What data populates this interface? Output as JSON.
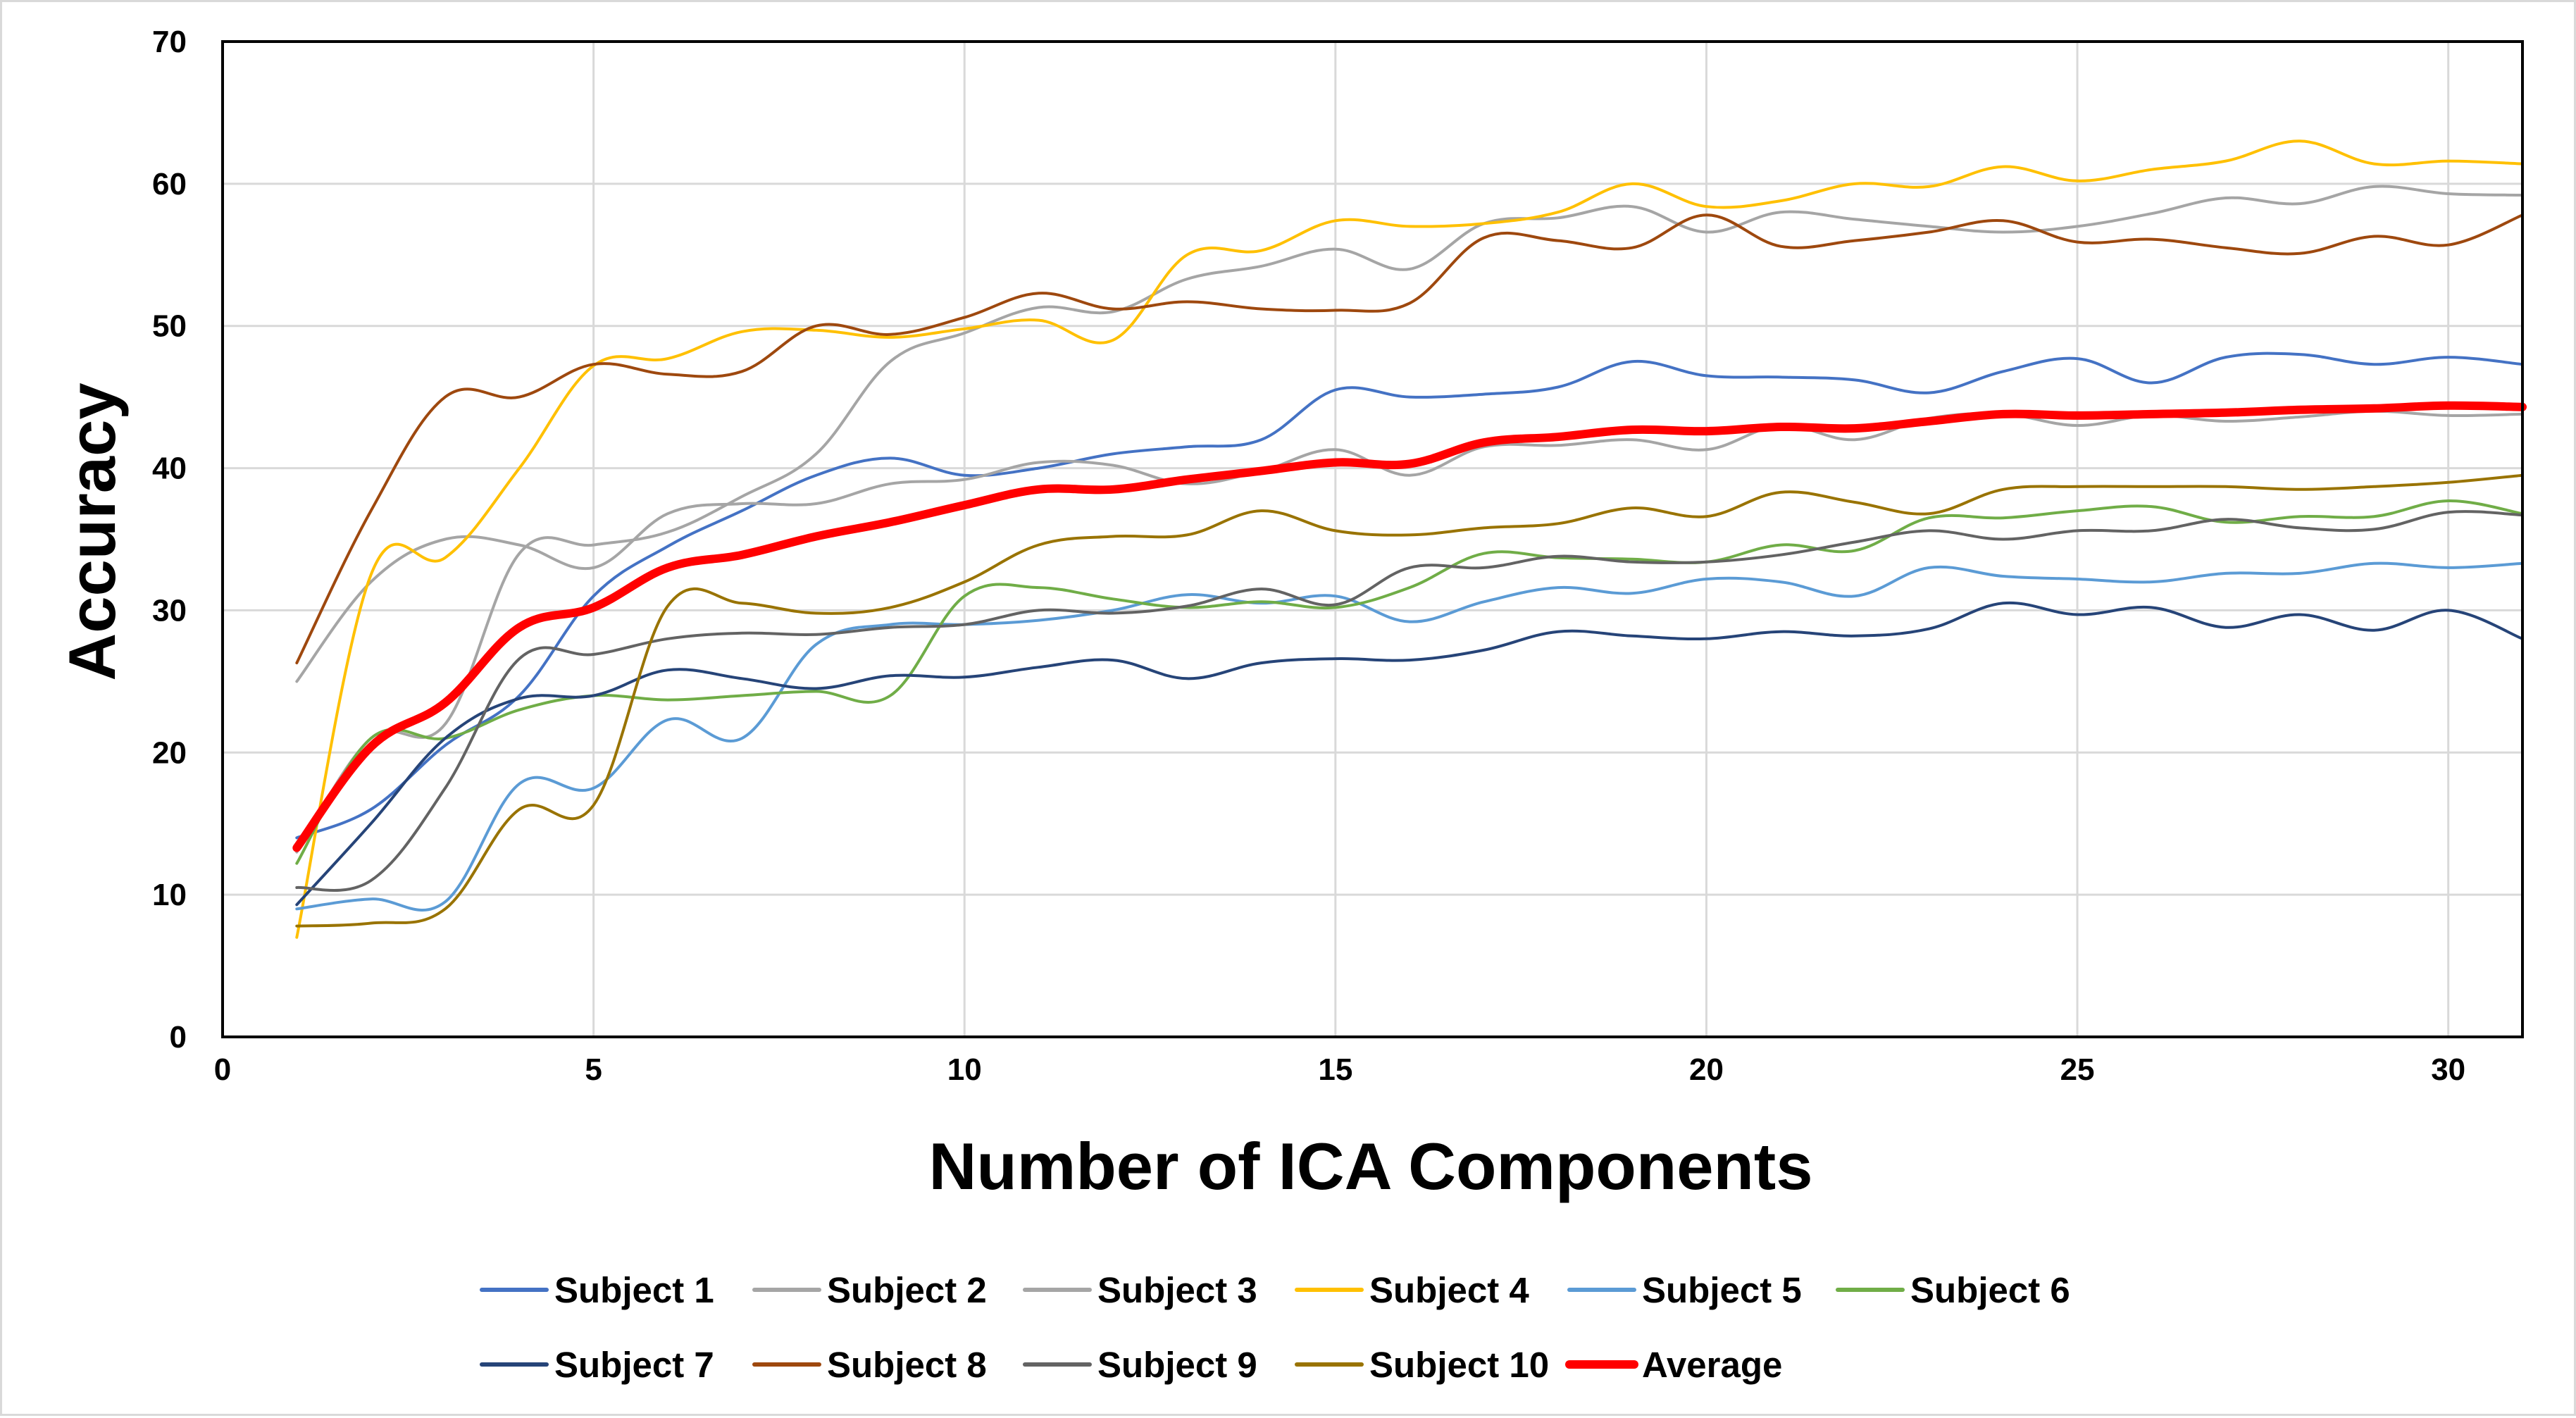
{
  "chart_data": {
    "type": "line",
    "title": "",
    "xlabel": "Number of ICA Components",
    "ylabel": "Accuracy",
    "xlim": [
      0,
      31
    ],
    "ylim": [
      0,
      70
    ],
    "x_ticks": [
      0,
      5,
      10,
      15,
      20,
      25,
      30
    ],
    "y_ticks": [
      0,
      10,
      20,
      30,
      40,
      50,
      60,
      70
    ],
    "grid": true,
    "legend_position": "bottom",
    "x": [
      1,
      2,
      3,
      4,
      5,
      6,
      7,
      8,
      9,
      10,
      11,
      12,
      13,
      14,
      15,
      16,
      17,
      18,
      19,
      20,
      21,
      22,
      23,
      24,
      25,
      26,
      27,
      28,
      29,
      30,
      31
    ],
    "series": [
      {
        "name": "Subject 1",
        "color": "#4472c4",
        "width": 4,
        "values": [
          14,
          16,
          20.5,
          24,
          31,
          34.5,
          37,
          39.5,
          40.7,
          39.5,
          40,
          41,
          41.5,
          42,
          45.5,
          45,
          45.2,
          45.7,
          47.5,
          46.5,
          46.4,
          46.2,
          45.3,
          46.8,
          47.7,
          46,
          47.8,
          48,
          47.3,
          47.8,
          47.3
        ]
      },
      {
        "name": "Subject 2",
        "color": "#a5a5a5",
        "width": 4,
        "values": [
          25,
          32,
          35,
          34.6,
          33,
          36.8,
          37.5,
          37.5,
          38.9,
          39.2,
          40.4,
          40.2,
          38.9,
          39.8,
          41.3,
          39.5,
          41.5,
          41.6,
          42,
          41.3,
          43,
          42,
          43.5,
          43.8,
          43,
          43.7,
          43.3,
          43.6,
          44,
          43.7,
          43.8
        ]
      },
      {
        "name": "Subject 3",
        "color": "#a5a5a5",
        "width": 4,
        "values": [
          13,
          21,
          22,
          34,
          34.6,
          35.5,
          38,
          41,
          47.5,
          49.5,
          51.3,
          51,
          53.3,
          54.2,
          55.4,
          54,
          57.2,
          57.6,
          58.4,
          56.6,
          58,
          57.5,
          57,
          56.6,
          57,
          57.9,
          59,
          58.6,
          59.8,
          59.3,
          59.2
        ]
      },
      {
        "name": "Subject 4",
        "color": "#ffc000",
        "width": 4,
        "values": [
          7,
          32.5,
          33.7,
          40,
          47.2,
          47.7,
          49.6,
          49.7,
          49.2,
          49.8,
          50.4,
          49,
          55,
          55.3,
          57.4,
          57,
          57.2,
          58,
          60,
          58.4,
          58.8,
          60,
          59.8,
          61.2,
          60.2,
          61,
          61.6,
          63,
          61.4,
          61.6,
          61.4
        ]
      },
      {
        "name": "Subject 5",
        "color": "#5b9bd5",
        "width": 4,
        "values": [
          9,
          9.7,
          9.5,
          17.8,
          17.5,
          22.3,
          21,
          27.6,
          29,
          29,
          29.3,
          30,
          31.1,
          30.5,
          31,
          29.2,
          30.6,
          31.6,
          31.2,
          32.2,
          32,
          31,
          33,
          32.4,
          32.2,
          32,
          32.6,
          32.6,
          33.3,
          33,
          33.3
        ]
      },
      {
        "name": "Subject 6",
        "color": "#70ad47",
        "width": 4,
        "values": [
          12.2,
          21,
          21,
          23,
          24,
          23.7,
          24,
          24.3,
          24,
          31,
          31.6,
          30.8,
          30.2,
          30.6,
          30.2,
          31.6,
          34,
          33.7,
          33.6,
          33.4,
          34.6,
          34.2,
          36.5,
          36.5,
          37,
          37.3,
          36.2,
          36.6,
          36.6,
          37.7,
          36.8
        ]
      },
      {
        "name": "Subject 7",
        "color": "#264478",
        "width": 4,
        "values": [
          9.3,
          15,
          21,
          23.8,
          24,
          25.8,
          25.2,
          24.5,
          25.4,
          25.3,
          26,
          26.5,
          25.2,
          26.3,
          26.6,
          26.5,
          27.2,
          28.5,
          28.2,
          28,
          28.5,
          28.2,
          28.7,
          30.5,
          29.7,
          30.2,
          28.8,
          29.7,
          28.6,
          30,
          28
        ]
      },
      {
        "name": "Subject 8",
        "color": "#9e480e",
        "width": 4,
        "values": [
          26.3,
          37,
          45,
          45,
          47.3,
          46.6,
          46.8,
          50,
          49.4,
          50.6,
          52.3,
          51.2,
          51.7,
          51.2,
          51.1,
          51.6,
          56.2,
          56,
          55.5,
          57.8,
          55.6,
          56,
          56.6,
          57.4,
          55.9,
          56.1,
          55.5,
          55.1,
          56.3,
          55.7,
          57.8
        ]
      },
      {
        "name": "Subject 9",
        "color": "#636363",
        "width": 4,
        "values": [
          10.5,
          11,
          17.5,
          26.6,
          26.9,
          28,
          28.4,
          28.3,
          28.8,
          29,
          30,
          29.8,
          30.3,
          31.5,
          30.4,
          33,
          33,
          33.8,
          33.4,
          33.4,
          33.9,
          34.8,
          35.6,
          35,
          35.6,
          35.6,
          36.4,
          35.8,
          35.7,
          36.9,
          36.7
        ]
      },
      {
        "name": "Subject 10",
        "color": "#997300",
        "width": 4,
        "values": [
          7.8,
          8,
          9,
          16,
          16.3,
          30.3,
          30.5,
          29.8,
          30.2,
          32,
          34.6,
          35.2,
          35.3,
          37,
          35.6,
          35.3,
          35.8,
          36.1,
          37.2,
          36.6,
          38.3,
          37.6,
          36.8,
          38.5,
          38.7,
          38.7,
          38.7,
          38.5,
          38.7,
          39,
          39.5
        ]
      },
      {
        "name": "Average",
        "color": "#ff0000",
        "width": 12,
        "values": [
          13.3,
          20.4,
          23.5,
          28.8,
          30.2,
          33,
          33.9,
          35.2,
          36.2,
          37.4,
          38.5,
          38.5,
          39.2,
          39.8,
          40.4,
          40.3,
          41.8,
          42.2,
          42.7,
          42.6,
          42.9,
          42.8,
          43.3,
          43.8,
          43.7,
          43.8,
          43.9,
          44.1,
          44.2,
          44.4,
          44.3
        ]
      }
    ]
  }
}
